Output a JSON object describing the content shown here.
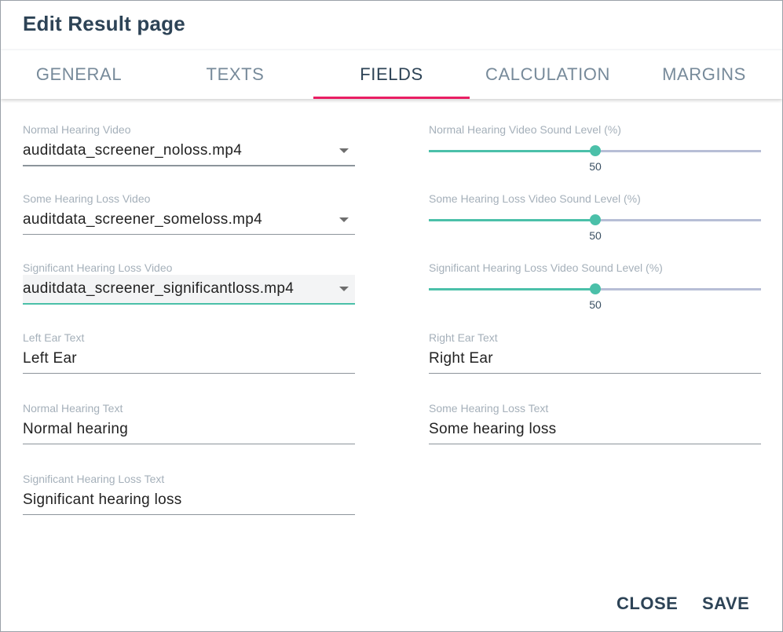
{
  "dialog": {
    "title": "Edit Result page"
  },
  "tabs": [
    {
      "label": "GENERAL",
      "active": false
    },
    {
      "label": "TEXTS",
      "active": false
    },
    {
      "label": "FIELDS",
      "active": true
    },
    {
      "label": "CALCULATION",
      "active": false
    },
    {
      "label": "MARGINS",
      "active": false
    }
  ],
  "left_fields": {
    "normal_video": {
      "label": "Normal Hearing Video",
      "value": "auditdata_screener_noloss.mp4"
    },
    "some_video": {
      "label": "Some Hearing Loss Video",
      "value": "auditdata_screener_someloss.mp4"
    },
    "significant_video": {
      "label": "Significant Hearing Loss Video",
      "value": "auditdata_screener_significantloss.mp4"
    },
    "left_ear": {
      "label": "Left Ear Text",
      "value": "Left Ear"
    },
    "normal_text": {
      "label": "Normal Hearing Text",
      "value": "Normal hearing"
    },
    "significant_text": {
      "label": "Significant Hearing Loss Text",
      "value": "Significant hearing loss"
    }
  },
  "right_fields": {
    "normal_level": {
      "label": "Normal Hearing Video Sound Level (%)",
      "value": 50
    },
    "some_level": {
      "label": "Some Hearing Loss Video Sound Level (%)",
      "value": 50
    },
    "significant_level": {
      "label": "Significant Hearing Loss Video Sound Level (%)",
      "value": 50
    },
    "right_ear": {
      "label": "Right Ear Text",
      "value": "Right Ear"
    },
    "some_text": {
      "label": "Some Hearing Loss Text",
      "value": "Some hearing loss"
    }
  },
  "actions": {
    "close_label": "CLOSE",
    "save_label": "SAVE"
  },
  "colors": {
    "accent": "#4bc0a9",
    "tab_indicator": "#e91e63",
    "title": "#2d4356",
    "rail": "#b7bed6"
  },
  "icons": {
    "select_caret": "caret-down-icon"
  }
}
